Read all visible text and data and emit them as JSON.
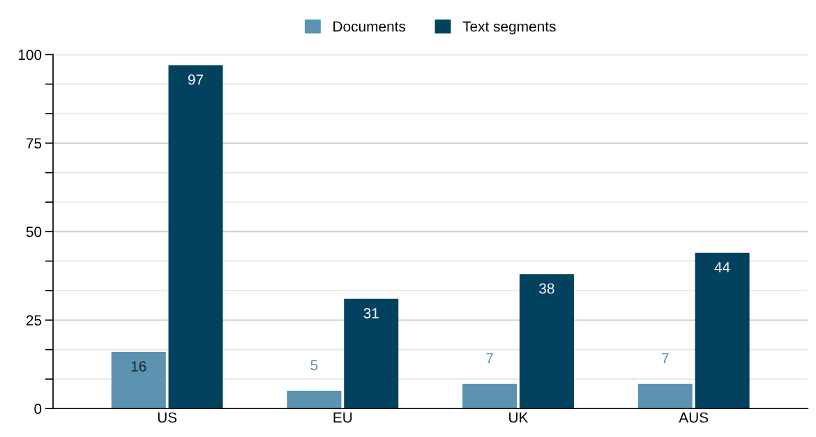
{
  "chart_data": {
    "type": "bar",
    "categories": [
      "US",
      "EU",
      "UK",
      "AUS"
    ],
    "series": [
      {
        "name": "Documents",
        "color": "#5b93b0",
        "values": [
          16,
          5,
          7,
          7
        ]
      },
      {
        "name": "Text segments",
        "color": "#02425f",
        "values": [
          97,
          31,
          38,
          44
        ]
      }
    ],
    "ylim": [
      0,
      100
    ],
    "yticks": [
      0,
      {
        "value": 8.33,
        "label": null
      },
      {
        "value": 16.67,
        "label": null
      },
      25,
      {
        "value": 33.33,
        "label": null
      },
      {
        "value": 41.67,
        "label": null
      },
      50,
      {
        "value": 58.33,
        "label": null
      },
      {
        "value": 66.67,
        "label": null
      },
      75,
      {
        "value": 83.33,
        "label": null
      },
      {
        "value": 91.67,
        "label": null
      },
      100
    ],
    "grid": "y",
    "legend": "top",
    "data_labels": true
  }
}
